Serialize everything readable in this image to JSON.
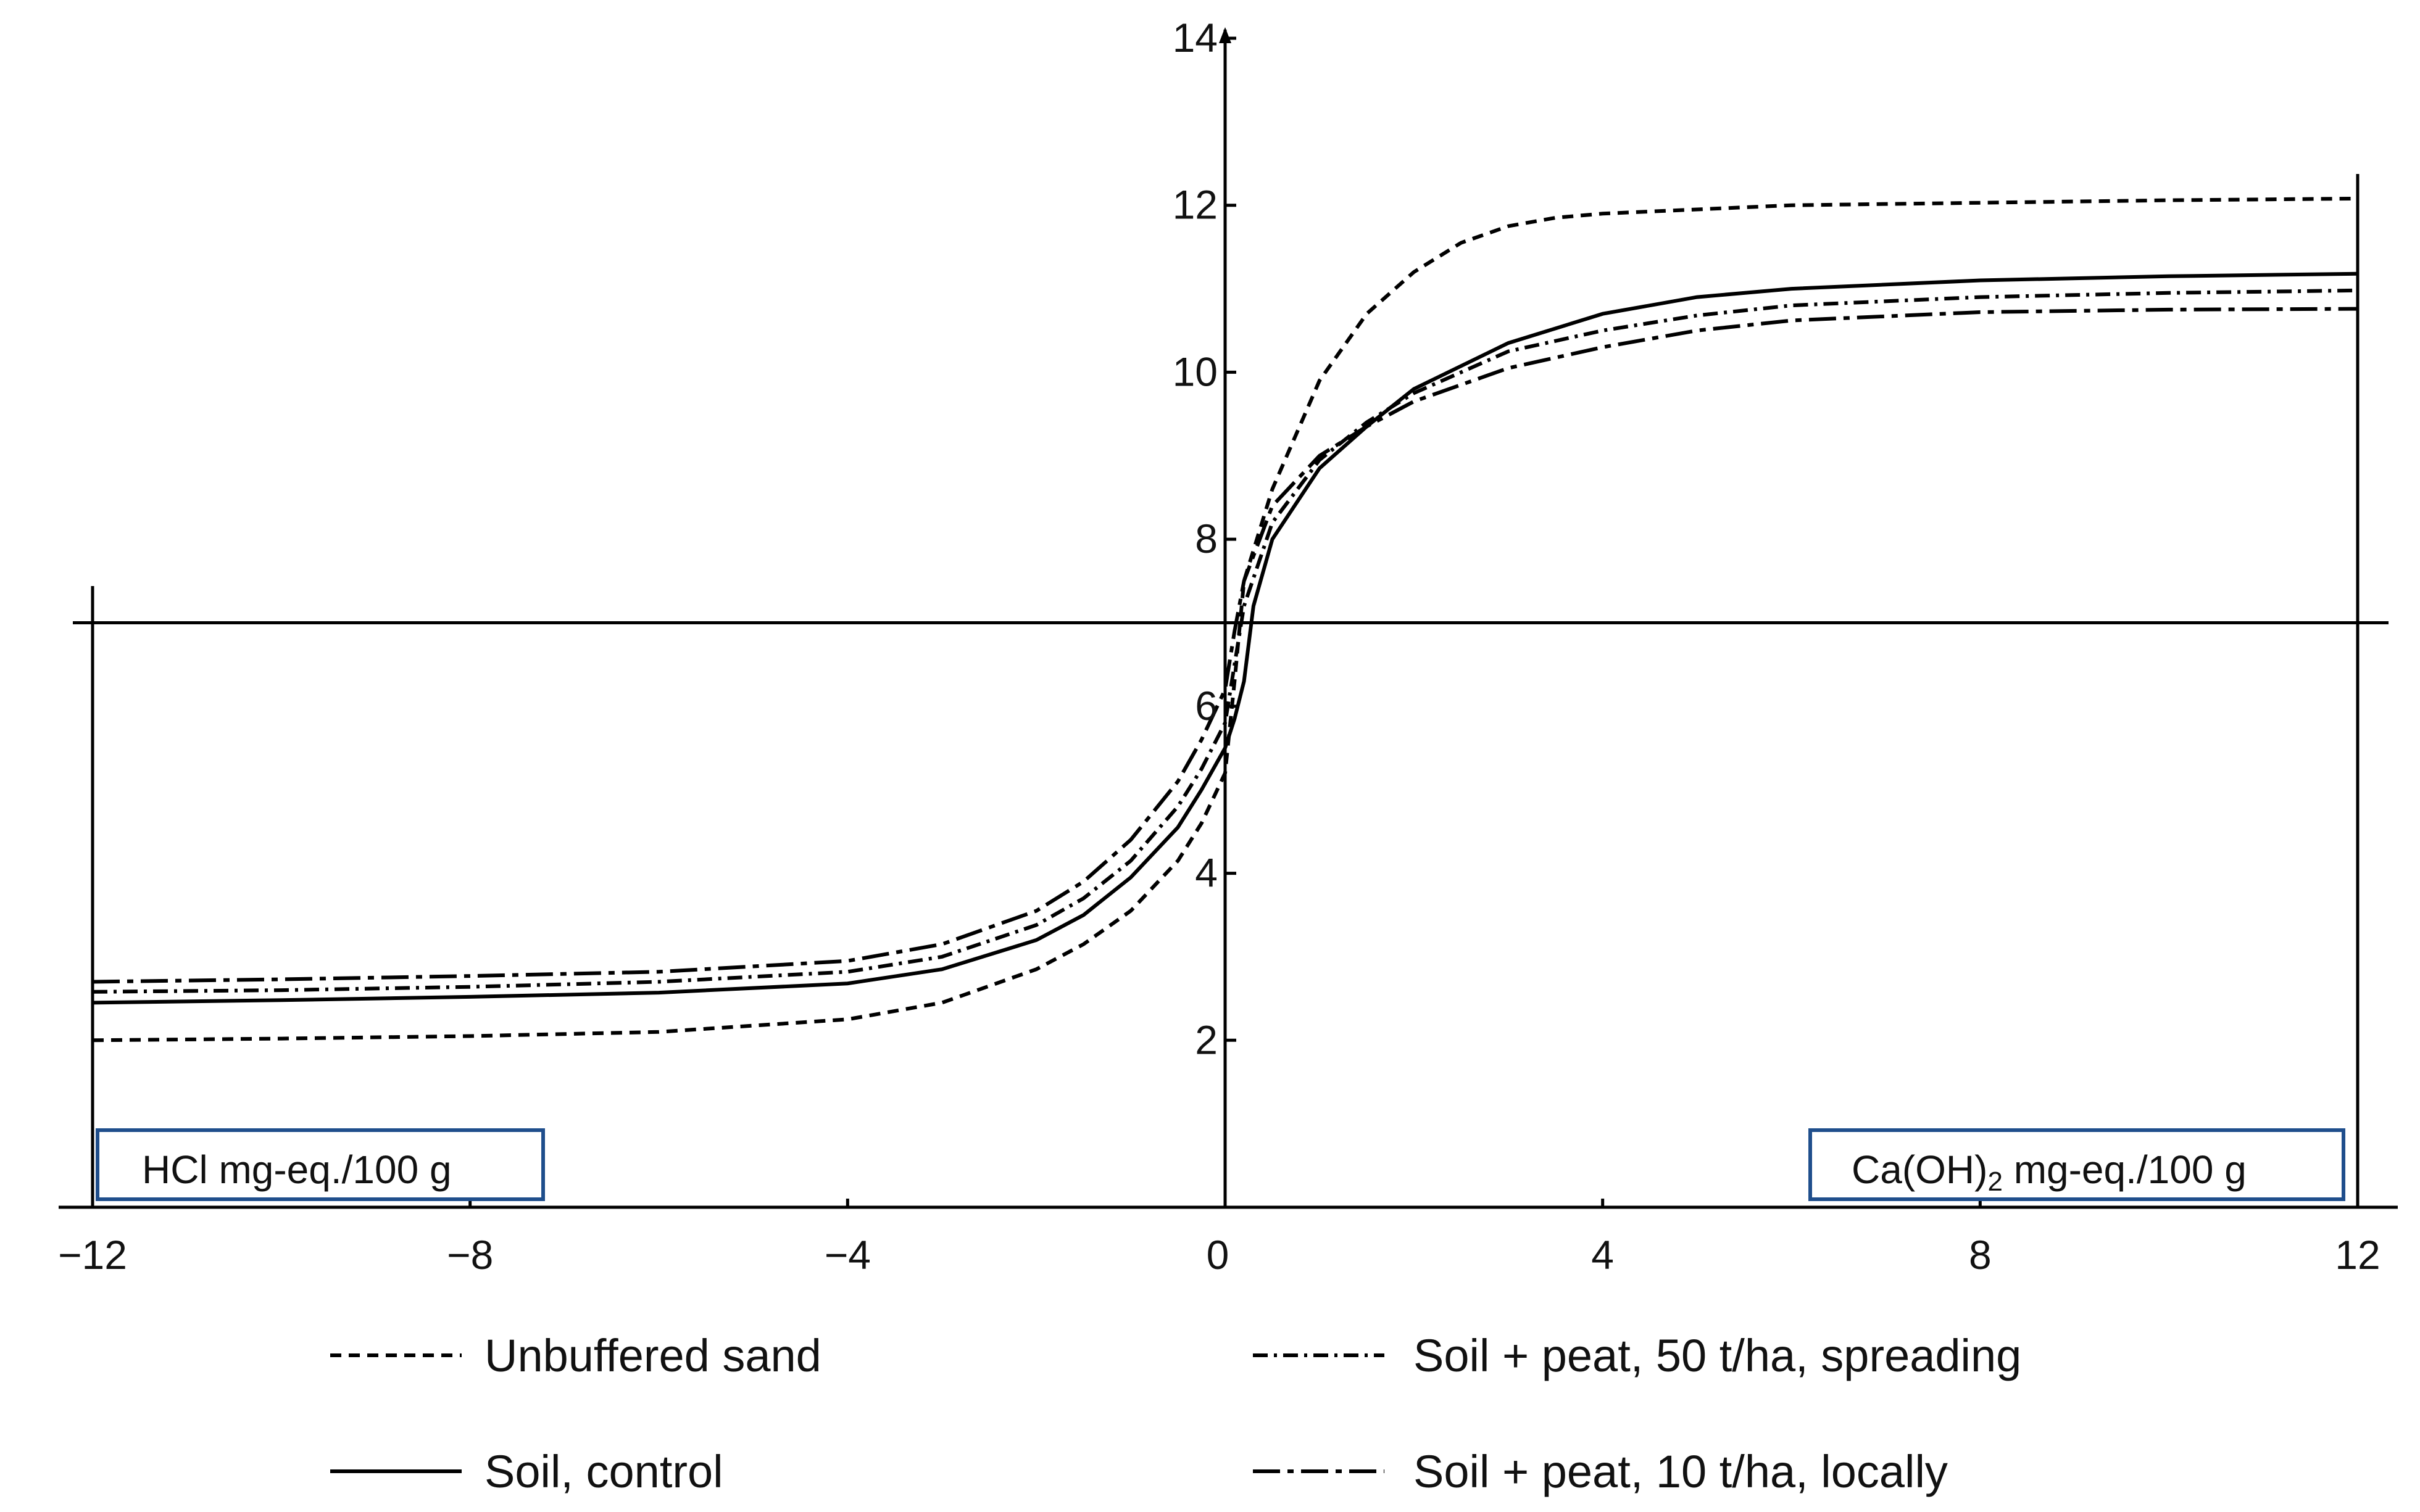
{
  "chart_data": {
    "type": "line",
    "x_ticks": [
      "−12",
      "−8",
      "−4",
      "0",
      "4",
      "8",
      "12"
    ],
    "y_ticks": [
      "2",
      "4",
      "6",
      "8",
      "10",
      "12",
      "14"
    ],
    "x_tick_values": [
      -12,
      -8,
      -4,
      0,
      4,
      8,
      12
    ],
    "y_tick_values": [
      2,
      4,
      6,
      8,
      10,
      12,
      14
    ],
    "xlim": [
      -12,
      12
    ],
    "ylim": [
      0,
      14
    ],
    "reference_line_y": 7,
    "left_unit_label": "HCl mg-eq./100 g",
    "right_unit_label": {
      "pre": "Ca(OH)",
      "sub": "2",
      "post": " mg-eq./100 g"
    },
    "series": [
      {
        "name": "Unbuffered sand",
        "dash": "18,12",
        "x": [
          -12,
          -10,
          -8,
          -6,
          -4,
          -3,
          -2,
          -1.5,
          -1,
          -0.5,
          -0.25,
          0,
          0.1,
          0.2,
          0.5,
          1,
          1.5,
          2,
          2.5,
          3,
          3.5,
          4,
          5,
          6,
          8,
          10,
          12
        ],
        "y": [
          2.0,
          2.02,
          2.05,
          2.1,
          2.25,
          2.45,
          2.85,
          3.15,
          3.55,
          4.15,
          4.6,
          5.2,
          6.3,
          7.5,
          8.6,
          9.9,
          10.7,
          11.2,
          11.55,
          11.75,
          11.85,
          11.9,
          11.95,
          12.0,
          12.03,
          12.06,
          12.08
        ]
      },
      {
        "name": "Soil, control",
        "dash": "",
        "x": [
          -12,
          -10,
          -8,
          -6,
          -4,
          -3,
          -2,
          -1.5,
          -1,
          -0.5,
          -0.25,
          0,
          0.1,
          0.2,
          0.3,
          0.5,
          1,
          1.5,
          2,
          3,
          4,
          5,
          6,
          8,
          10,
          12
        ],
        "y": [
          2.45,
          2.48,
          2.52,
          2.57,
          2.68,
          2.85,
          3.2,
          3.5,
          3.95,
          4.55,
          5.0,
          5.5,
          5.85,
          6.3,
          7.2,
          8.0,
          8.85,
          9.35,
          9.8,
          10.35,
          10.7,
          10.9,
          11.0,
          11.1,
          11.15,
          11.18
        ]
      },
      {
        "name": "Soil + peat, 50 t/ha, spreading",
        "dash": "24,10,5,10",
        "x": [
          -12,
          -10,
          -8,
          -6,
          -4,
          -3,
          -2,
          -1.5,
          -1,
          -0.5,
          -0.25,
          0,
          0.1,
          0.2,
          0.5,
          1,
          1.5,
          2,
          3,
          4,
          5,
          6,
          8,
          10,
          12
        ],
        "y": [
          2.58,
          2.6,
          2.64,
          2.7,
          2.82,
          3.0,
          3.38,
          3.7,
          4.15,
          4.8,
          5.25,
          5.8,
          6.5,
          7.2,
          8.2,
          8.95,
          9.4,
          9.75,
          10.25,
          10.5,
          10.68,
          10.8,
          10.9,
          10.95,
          10.98
        ]
      },
      {
        "name": "Soil + peat, 10 t/ha, locally",
        "dash": "44,12,10,12",
        "x": [
          -12,
          -10,
          -8,
          -6,
          -4,
          -3,
          -2,
          -1.5,
          -1,
          -0.5,
          -0.25,
          0,
          0.1,
          0.2,
          0.5,
          1,
          1.5,
          2,
          3,
          4,
          5,
          6,
          8,
          10,
          12
        ],
        "y": [
          2.7,
          2.73,
          2.77,
          2.82,
          2.95,
          3.15,
          3.55,
          3.9,
          4.4,
          5.1,
          5.6,
          6.2,
          6.9,
          7.5,
          8.4,
          9.0,
          9.35,
          9.65,
          10.05,
          10.3,
          10.5,
          10.62,
          10.72,
          10.75,
          10.76
        ]
      }
    ],
    "legend": [
      {
        "label": "Unbuffered sand",
        "dash": "18,12"
      },
      {
        "label": "Soil + peat, 50 t/ha, spreading",
        "dash": "24,10,5,10"
      },
      {
        "label": "Soil, control",
        "dash": ""
      },
      {
        "label": "Soil + peat, 10 t/ha, locally",
        "dash": "44,12,10,12"
      }
    ]
  }
}
